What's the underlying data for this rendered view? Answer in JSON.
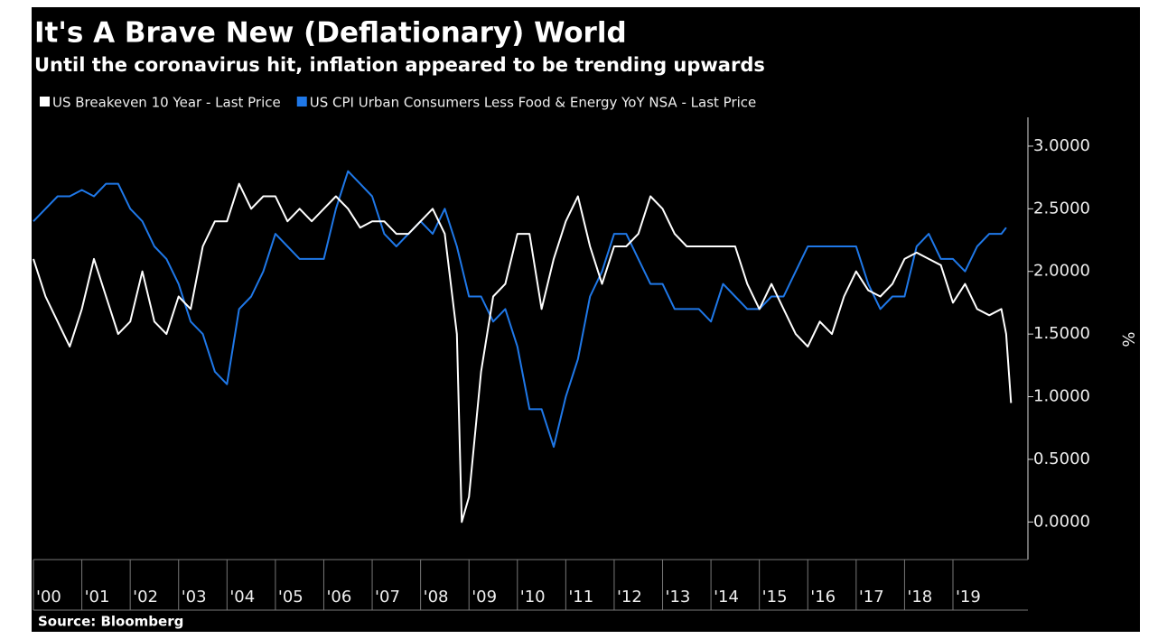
{
  "chart_data": {
    "type": "line",
    "title": "It's A Brave New (Deflationary) World",
    "subtitle": "Until the coronavirus hit, inflation appeared to be trending upwards",
    "y_label": "%",
    "source": "Source: Bloomberg",
    "xlim": [
      2000,
      2020.4
    ],
    "xticks": [
      {
        "value": 2000,
        "label": "'00"
      },
      {
        "value": 2001,
        "label": "'01"
      },
      {
        "value": 2002,
        "label": "'02"
      },
      {
        "value": 2003,
        "label": "'03"
      },
      {
        "value": 2004,
        "label": "'04"
      },
      {
        "value": 2005,
        "label": "'05"
      },
      {
        "value": 2006,
        "label": "'06"
      },
      {
        "value": 2007,
        "label": "'07"
      },
      {
        "value": 2008,
        "label": "'08"
      },
      {
        "value": 2009,
        "label": "'09"
      },
      {
        "value": 2010,
        "label": "'10"
      },
      {
        "value": 2011,
        "label": "'11"
      },
      {
        "value": 2012,
        "label": "'12"
      },
      {
        "value": 2013,
        "label": "'13"
      },
      {
        "value": 2014,
        "label": "'14"
      },
      {
        "value": 2015,
        "label": "'15"
      },
      {
        "value": 2016,
        "label": "'16"
      },
      {
        "value": 2017,
        "label": "'17"
      },
      {
        "value": 2018,
        "label": "'18"
      },
      {
        "value": 2019,
        "label": "'19"
      }
    ],
    "ylim": [
      -0.3,
      3.23
    ],
    "yticks": [
      {
        "value": 0,
        "label": "0.0000"
      },
      {
        "value": 0.5,
        "label": "0.5000"
      },
      {
        "value": 1,
        "label": "1.0000"
      },
      {
        "value": 1.5,
        "label": "1.5000"
      },
      {
        "value": 2,
        "label": "2.0000"
      },
      {
        "value": 2.5,
        "label": "2.5000"
      },
      {
        "value": 3,
        "label": "3.0000"
      }
    ],
    "series": [
      {
        "name": "US Breakeven 10 Year - Last Price",
        "color": "#ffffff",
        "x": [
          2000,
          2000.25,
          2000.5,
          2000.75,
          2001,
          2001.25,
          2001.5,
          2001.75,
          2002,
          2002.25,
          2002.5,
          2002.75,
          2003,
          2003.25,
          2003.5,
          2003.75,
          2004,
          2004.25,
          2004.5,
          2004.75,
          2005,
          2005.25,
          2005.5,
          2005.75,
          2006,
          2006.25,
          2006.5,
          2006.75,
          2007,
          2007.25,
          2007.5,
          2007.75,
          2008,
          2008.25,
          2008.5,
          2008.75,
          2008.85,
          2009,
          2009.25,
          2009.5,
          2009.75,
          2010,
          2010.25,
          2010.5,
          2010.75,
          2011,
          2011.25,
          2011.5,
          2011.75,
          2012,
          2012.25,
          2012.5,
          2012.75,
          2013,
          2013.25,
          2013.5,
          2013.75,
          2014,
          2014.25,
          2014.5,
          2014.75,
          2015,
          2015.25,
          2015.5,
          2015.75,
          2016,
          2016.25,
          2016.5,
          2016.75,
          2017,
          2017.25,
          2017.5,
          2017.75,
          2018,
          2018.25,
          2018.5,
          2018.75,
          2019,
          2019.25,
          2019.5,
          2019.75,
          2020,
          2020.1,
          2020.2
        ],
        "values": [
          2.1,
          1.8,
          1.6,
          1.4,
          1.7,
          2.1,
          1.8,
          1.5,
          1.6,
          2.0,
          1.6,
          1.5,
          1.8,
          1.7,
          2.2,
          2.4,
          2.4,
          2.7,
          2.5,
          2.6,
          2.6,
          2.4,
          2.5,
          2.4,
          2.5,
          2.6,
          2.5,
          2.35,
          2.4,
          2.4,
          2.3,
          2.3,
          2.4,
          2.5,
          2.3,
          1.5,
          0.0,
          0.2,
          1.2,
          1.8,
          1.9,
          2.3,
          2.3,
          1.7,
          2.1,
          2.4,
          2.6,
          2.2,
          1.9,
          2.2,
          2.2,
          2.3,
          2.6,
          2.5,
          2.3,
          2.2,
          2.2,
          2.2,
          2.2,
          2.2,
          1.9,
          1.7,
          1.9,
          1.7,
          1.5,
          1.4,
          1.6,
          1.5,
          1.8,
          2.0,
          1.85,
          1.8,
          1.9,
          2.1,
          2.15,
          2.1,
          2.05,
          1.75,
          1.9,
          1.7,
          1.65,
          1.7,
          1.5,
          0.95
        ]
      },
      {
        "name": "US CPI Urban Consumers Less Food & Energy YoY NSA - Last Price",
        "color": "#1f78e8",
        "x": [
          2000,
          2000.25,
          2000.5,
          2000.75,
          2001,
          2001.25,
          2001.5,
          2001.75,
          2002,
          2002.25,
          2002.5,
          2002.75,
          2003,
          2003.25,
          2003.5,
          2003.75,
          2004,
          2004.25,
          2004.5,
          2004.75,
          2005,
          2005.25,
          2005.5,
          2005.75,
          2006,
          2006.25,
          2006.5,
          2006.75,
          2007,
          2007.25,
          2007.5,
          2007.75,
          2008,
          2008.25,
          2008.5,
          2008.75,
          2009,
          2009.25,
          2009.5,
          2009.75,
          2010,
          2010.25,
          2010.5,
          2010.75,
          2011,
          2011.25,
          2011.5,
          2011.75,
          2012,
          2012.25,
          2012.5,
          2012.75,
          2013,
          2013.25,
          2013.5,
          2013.75,
          2014,
          2014.25,
          2014.5,
          2014.75,
          2015,
          2015.25,
          2015.5,
          2015.75,
          2016,
          2016.25,
          2016.5,
          2016.75,
          2017,
          2017.25,
          2017.5,
          2017.75,
          2018,
          2018.25,
          2018.5,
          2018.75,
          2019,
          2019.25,
          2019.5,
          2019.75,
          2020,
          2020.1
        ],
        "values": [
          2.4,
          2.5,
          2.6,
          2.6,
          2.65,
          2.6,
          2.7,
          2.7,
          2.5,
          2.4,
          2.2,
          2.1,
          1.9,
          1.6,
          1.5,
          1.2,
          1.1,
          1.7,
          1.8,
          2.0,
          2.3,
          2.2,
          2.1,
          2.1,
          2.1,
          2.5,
          2.8,
          2.7,
          2.6,
          2.3,
          2.2,
          2.3,
          2.4,
          2.3,
          2.5,
          2.2,
          1.8,
          1.8,
          1.6,
          1.7,
          1.4,
          0.9,
          0.9,
          0.6,
          1.0,
          1.3,
          1.8,
          2.0,
          2.3,
          2.3,
          2.1,
          1.9,
          1.9,
          1.7,
          1.7,
          1.7,
          1.6,
          1.9,
          1.8,
          1.7,
          1.7,
          1.8,
          1.8,
          2.0,
          2.2,
          2.2,
          2.2,
          2.2,
          2.2,
          1.9,
          1.7,
          1.8,
          1.8,
          2.2,
          2.3,
          2.1,
          2.1,
          2.0,
          2.2,
          2.3,
          2.3,
          2.35
        ]
      }
    ]
  }
}
